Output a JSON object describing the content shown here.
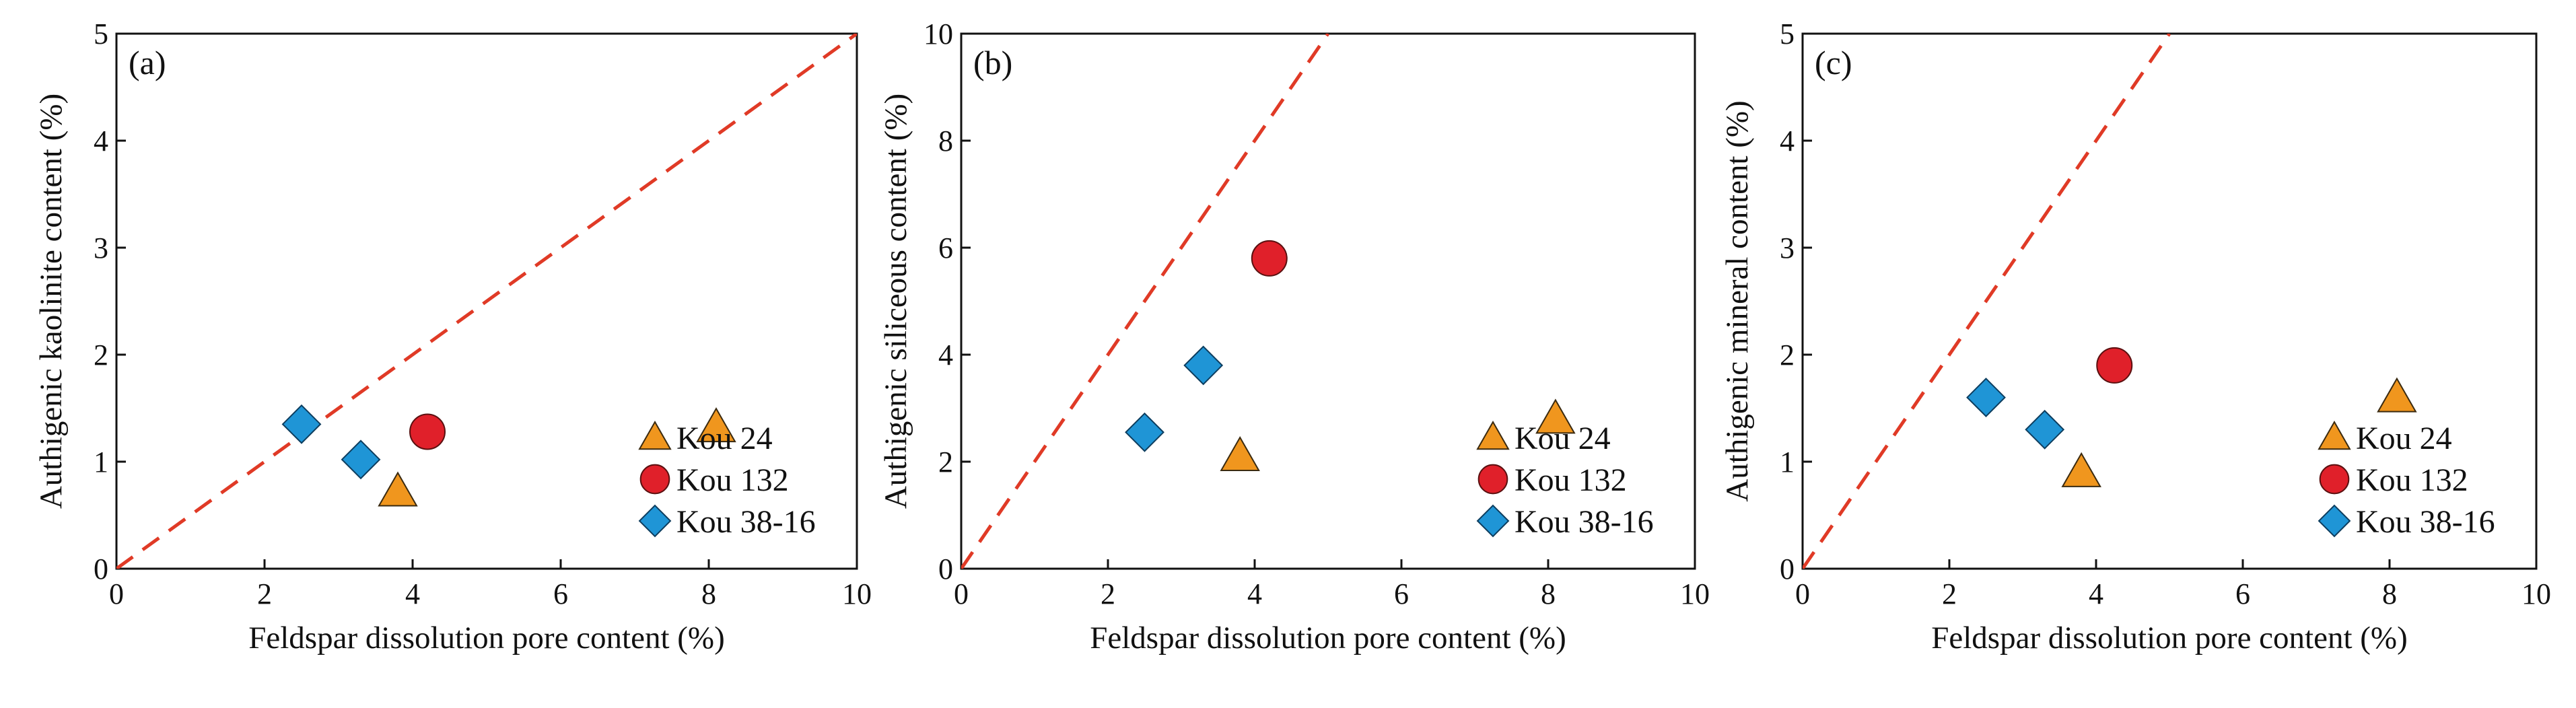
{
  "colors": {
    "kou24": "#f0961e",
    "kou132": "#e0202a",
    "kou3816": "#1f95d6",
    "refline": "#e03a26",
    "axis": "#111111"
  },
  "chart_data": [
    {
      "type": "scatter",
      "panel_label": "(a)",
      "xlabel": "Feldspar  dissolution  pore  content (%)",
      "ylabel": "Authigenic  kaolinite content (%)",
      "xlim": [
        0,
        10
      ],
      "ylim": [
        0,
        5
      ],
      "xticks": [
        "0",
        "2",
        "4",
        "6",
        "8",
        "10"
      ],
      "yticks": [
        "0",
        "1",
        "2",
        "3",
        "4",
        "5"
      ],
      "reference_line": {
        "x": [
          0,
          10
        ],
        "y": [
          0,
          5
        ]
      },
      "legend_position": "bottom-right",
      "series": [
        {
          "name": "Kou  24",
          "marker": "triangle",
          "points": [
            [
              3.8,
              0.72
            ],
            [
              8.1,
              1.32
            ]
          ]
        },
        {
          "name": "Kou 132",
          "marker": "circle",
          "points": [
            [
              4.2,
              1.28
            ]
          ]
        },
        {
          "name": "Kou 38-16",
          "marker": "diamond",
          "points": [
            [
              2.5,
              1.35
            ],
            [
              3.3,
              1.02
            ]
          ]
        }
      ]
    },
    {
      "type": "scatter",
      "panel_label": "(b)",
      "xlabel": "Feldspar  dissolution  pore  content (%)",
      "ylabel": "Authigenic  siliceous  content (%)",
      "xlim": [
        0,
        10
      ],
      "ylim": [
        0,
        10
      ],
      "xticks": [
        "0",
        "2",
        "4",
        "6",
        "8",
        "10"
      ],
      "yticks": [
        "0",
        "2",
        "4",
        "6",
        "8",
        "10"
      ],
      "reference_line": {
        "x": [
          0,
          5
        ],
        "y": [
          0,
          10
        ]
      },
      "legend_position": "bottom-right",
      "series": [
        {
          "name": "Kou  24",
          "marker": "triangle",
          "points": [
            [
              3.8,
              2.1
            ],
            [
              8.1,
              2.8
            ]
          ]
        },
        {
          "name": "Kou 132",
          "marker": "circle",
          "points": [
            [
              4.2,
              5.8
            ]
          ]
        },
        {
          "name": "Kou 38-16",
          "marker": "diamond",
          "points": [
            [
              2.5,
              2.55
            ],
            [
              3.3,
              3.8
            ]
          ]
        }
      ]
    },
    {
      "type": "scatter",
      "panel_label": "(c)",
      "xlabel": "Feldspar  dissolution  pore  content (%)",
      "ylabel": "Authigenic  mineral content (%)",
      "xlim": [
        0,
        10
      ],
      "ylim": [
        0,
        5
      ],
      "xticks": [
        "0",
        "2",
        "4",
        "6",
        "8",
        "10"
      ],
      "yticks": [
        "0",
        "1",
        "2",
        "3",
        "4",
        "5"
      ],
      "reference_line": {
        "x": [
          0,
          5
        ],
        "y": [
          0,
          5
        ]
      },
      "legend_position": "bottom-right",
      "series": [
        {
          "name": "Kou  24",
          "marker": "triangle",
          "points": [
            [
              3.8,
              0.9
            ],
            [
              8.1,
              1.6
            ]
          ]
        },
        {
          "name": "Kou 132",
          "marker": "circle",
          "points": [
            [
              4.25,
              1.9
            ]
          ]
        },
        {
          "name": "Kou 38-16",
          "marker": "diamond",
          "points": [
            [
              2.5,
              1.6
            ],
            [
              3.3,
              1.3
            ]
          ]
        }
      ]
    }
  ]
}
